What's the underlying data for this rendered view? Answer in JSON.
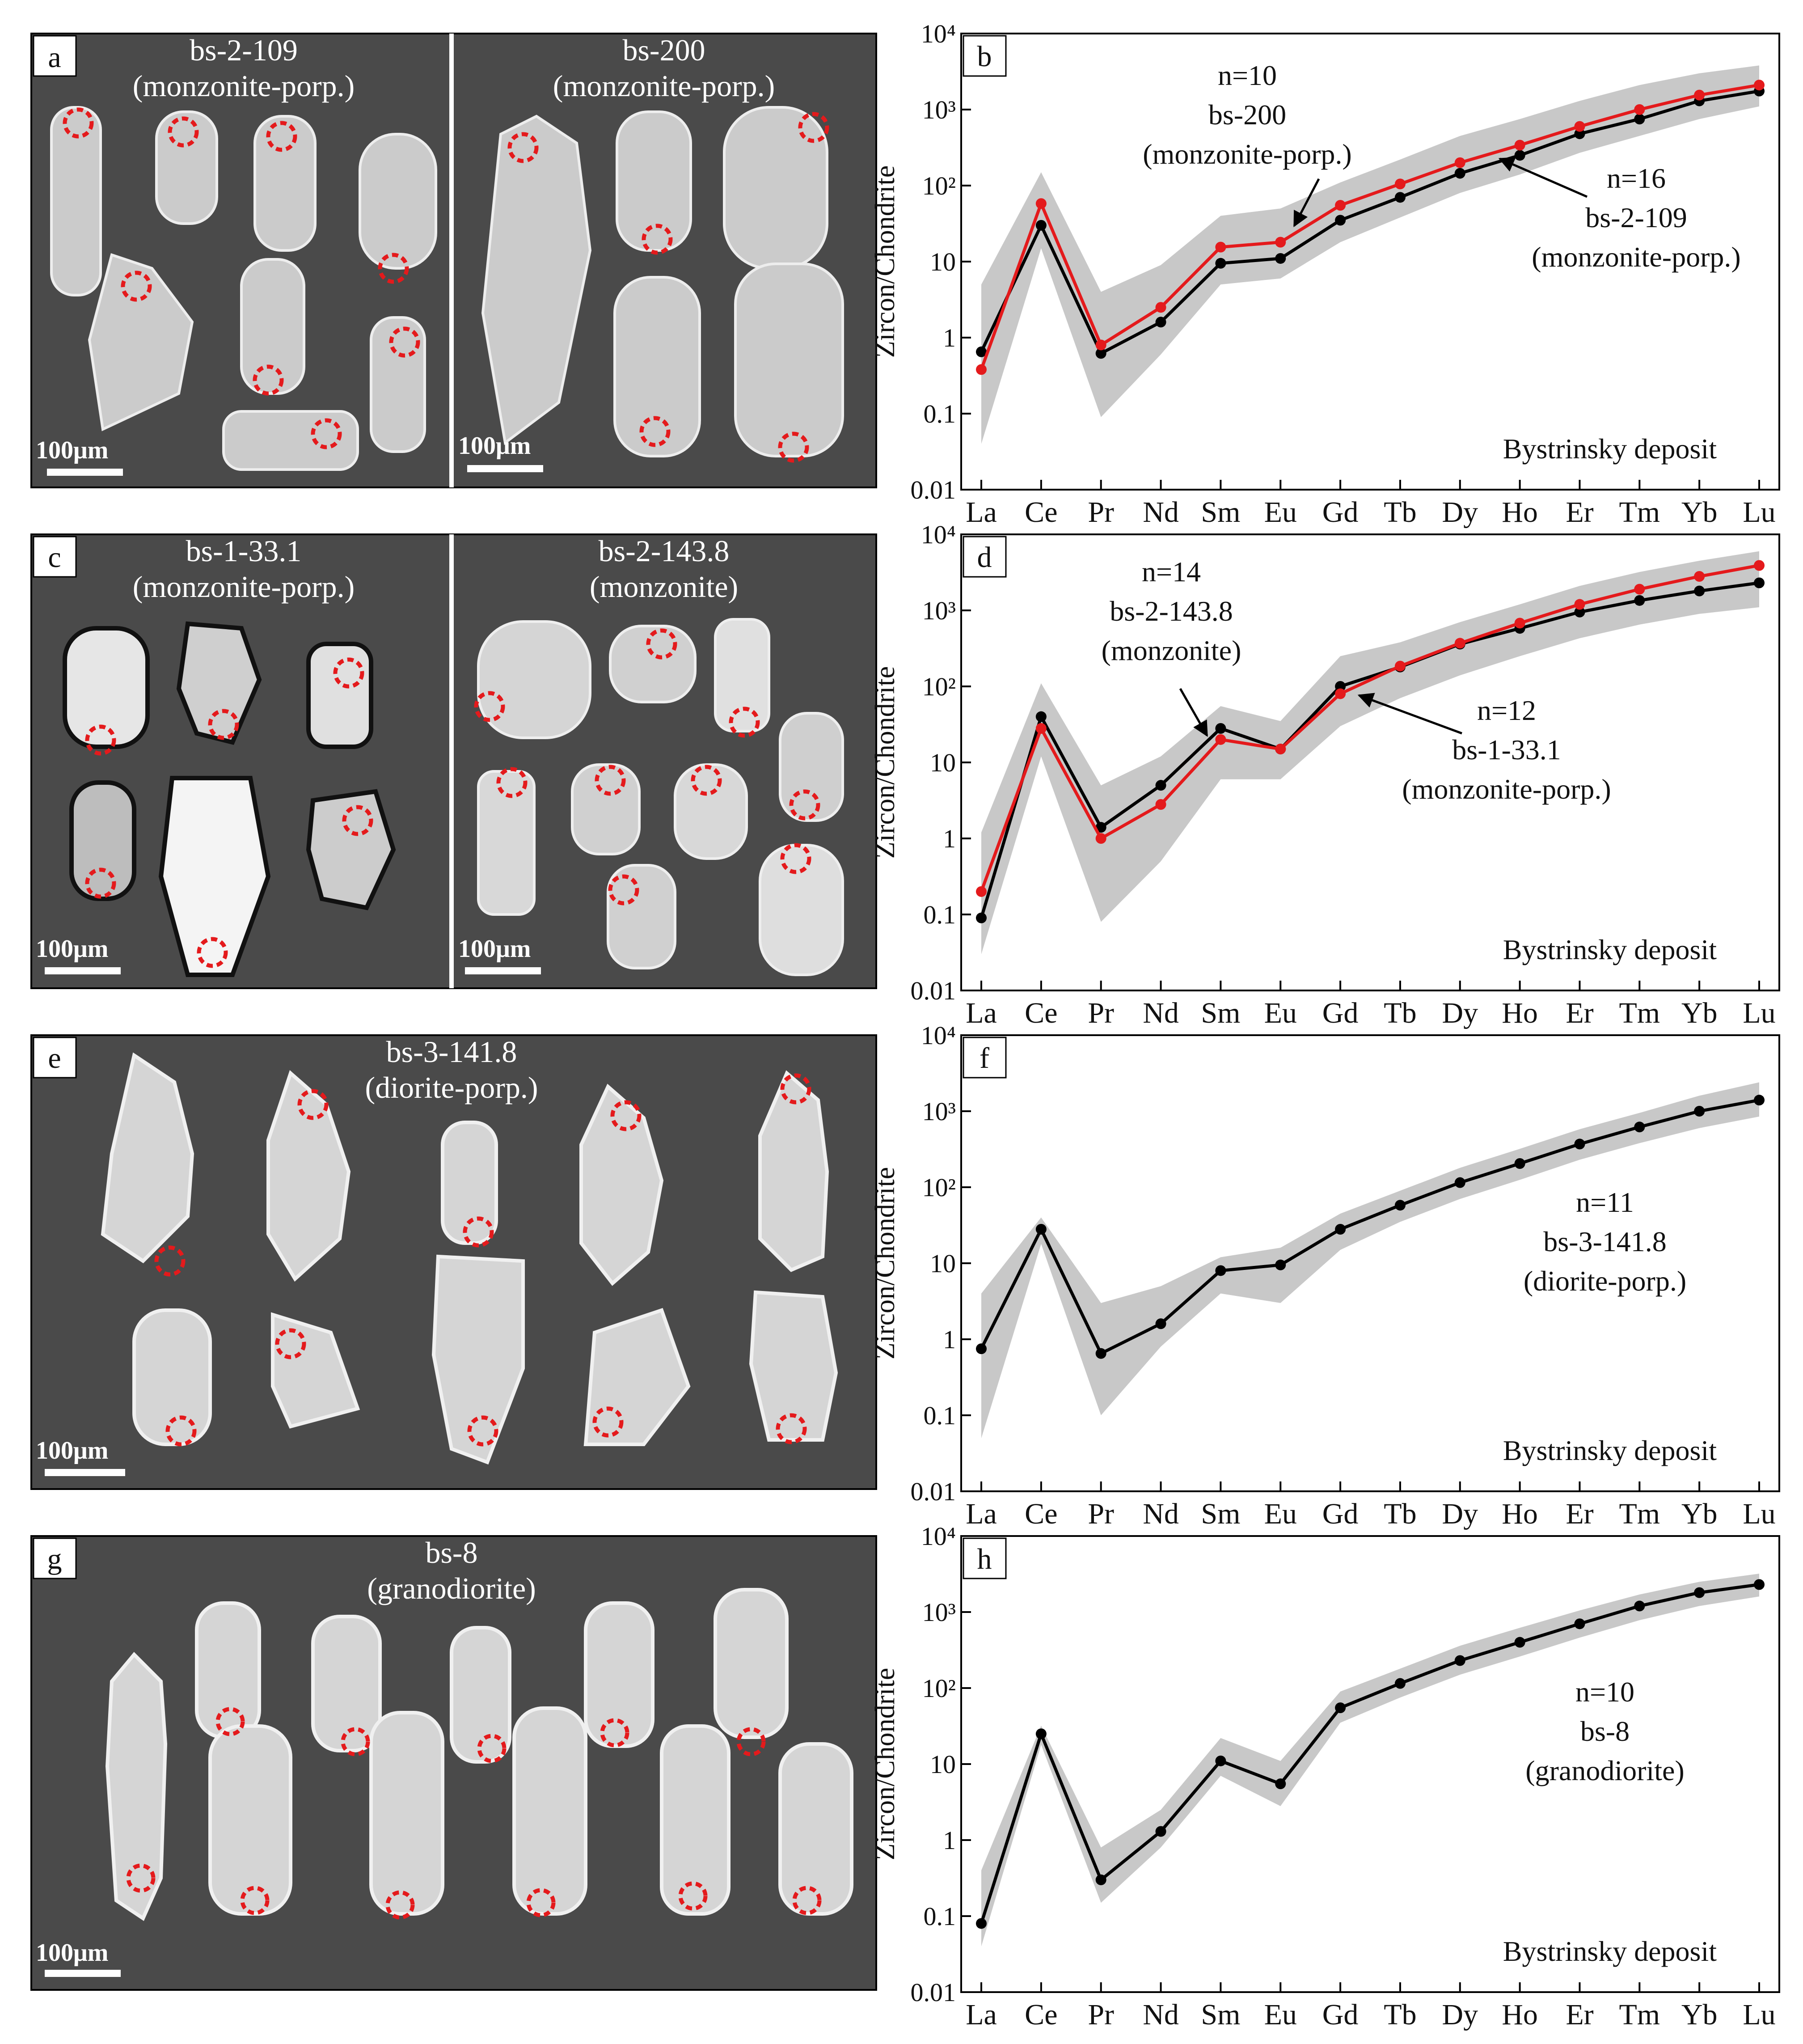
{
  "colors": {
    "panel_bg": "#4a4a4a",
    "crystal": "#d9d9d9",
    "spot": "#e41a1c",
    "series_black": "#000000",
    "series_red": "#e41a1c",
    "envelope": "#c8c8c8"
  },
  "cl_panels": [
    {
      "letter": "a",
      "samples": [
        {
          "name": "bs-2-109",
          "rock": "(monzonite-porp.)",
          "scale": "100μm"
        },
        {
          "name": "bs-200",
          "rock": "(monzonite-porp.)",
          "scale": "100μm"
        }
      ]
    },
    {
      "letter": "c",
      "samples": [
        {
          "name": "bs-1-33.1",
          "rock": "(monzonite-porp.)",
          "scale": "100μm"
        },
        {
          "name": "bs-2-143.8",
          "rock": "(monzonite)",
          "scale": "100μm"
        }
      ]
    },
    {
      "letter": "e",
      "samples": [
        {
          "name": "bs-3-141.8",
          "rock": "(diorite-porp.)",
          "scale": "100μm"
        }
      ]
    },
    {
      "letter": "g",
      "samples": [
        {
          "name": "bs-8",
          "rock": "(granodiorite)",
          "scale": "100μm"
        }
      ]
    }
  ],
  "chart_data": [
    {
      "type": "line",
      "letter": "b",
      "categories": [
        "La",
        "Ce",
        "Pr",
        "Nd",
        "Sm",
        "Eu",
        "Gd",
        "Tb",
        "Dy",
        "Ho",
        "Er",
        "Tm",
        "Yb",
        "Lu"
      ],
      "ylabel": "Zircon/Chondrite",
      "yscale": "log",
      "ylim": [
        0.01,
        10000
      ],
      "yticks": [
        "0.01",
        "0.1",
        "1",
        "10",
        "10²",
        "10³",
        "10⁴"
      ],
      "deposit": "Bystrinsky deposit",
      "series": [
        {
          "name": "bs-2-109",
          "color": "#000000",
          "values": [
            0.65,
            30,
            0.62,
            1.6,
            9.5,
            11,
            35,
            70,
            145,
            250,
            480,
            750,
            1300,
            1750
          ]
        },
        {
          "name": "bs-200",
          "color": "#e41a1c",
          "values": [
            0.38,
            58,
            0.8,
            2.5,
            15.5,
            18,
            55,
            105,
            200,
            340,
            600,
            1000,
            1550,
            2100
          ]
        }
      ],
      "envelope": {
        "upper": [
          5,
          150,
          4,
          9,
          40,
          50,
          110,
          220,
          450,
          750,
          1300,
          2100,
          3000,
          3800
        ],
        "lower": [
          0.04,
          15,
          0.09,
          0.6,
          5,
          6,
          18,
          38,
          80,
          140,
          270,
          450,
          750,
          1100
        ]
      },
      "annotations": [
        {
          "lines": [
            "n=10",
            "bs-200",
            "(monzonite-porp.)"
          ]
        },
        {
          "lines": [
            "n=16",
            "bs-2-109",
            "(monzonite-porp.)"
          ]
        }
      ]
    },
    {
      "type": "line",
      "letter": "d",
      "categories": [
        "La",
        "Ce",
        "Pr",
        "Nd",
        "Sm",
        "Eu",
        "Gd",
        "Tb",
        "Dy",
        "Ho",
        "Er",
        "Tm",
        "Yb",
        "Lu"
      ],
      "ylabel": "Zircon/Chondrite",
      "yscale": "log",
      "ylim": [
        0.01,
        10000
      ],
      "yticks": [
        "0.01",
        "0.1",
        "1",
        "10",
        "10²",
        "10³",
        "10⁴"
      ],
      "deposit": "Bystrinsky deposit",
      "series": [
        {
          "name": "bs-2-143.8",
          "color": "#000000",
          "values": [
            0.09,
            40,
            1.4,
            5,
            28,
            15,
            100,
            180,
            360,
            580,
            950,
            1350,
            1800,
            2300
          ]
        },
        {
          "name": "bs-1-33.1",
          "color": "#e41a1c",
          "values": [
            0.2,
            28,
            1.0,
            2.8,
            20,
            15,
            80,
            185,
            370,
            680,
            1200,
            1900,
            2800,
            3900
          ]
        }
      ],
      "envelope": {
        "upper": [
          1.2,
          110,
          5,
          12,
          55,
          35,
          250,
          380,
          700,
          1200,
          2100,
          3200,
          4500,
          6000
        ],
        "lower": [
          0.03,
          12,
          0.08,
          0.5,
          6,
          6,
          30,
          70,
          140,
          250,
          430,
          650,
          900,
          1100
        ]
      },
      "annotations": [
        {
          "lines": [
            "n=14",
            "bs-2-143.8",
            "(monzonite)"
          ]
        },
        {
          "lines": [
            "n=12",
            "bs-1-33.1",
            "(monzonite-porp.)"
          ]
        }
      ]
    },
    {
      "type": "line",
      "letter": "f",
      "categories": [
        "La",
        "Ce",
        "Pr",
        "Nd",
        "Sm",
        "Eu",
        "Gd",
        "Tb",
        "Dy",
        "Ho",
        "Er",
        "Tm",
        "Yb",
        "Lu"
      ],
      "ylabel": "Zircon/Chondrite",
      "yscale": "log",
      "ylim": [
        0.01,
        10000
      ],
      "yticks": [
        "0.01",
        "0.1",
        "1",
        "10",
        "10²",
        "10³",
        "10⁴"
      ],
      "deposit": "Bystrinsky deposit",
      "series": [
        {
          "name": "bs-3-141.8",
          "color": "#000000",
          "values": [
            0.75,
            28,
            0.65,
            1.6,
            8,
            9.5,
            28,
            58,
            115,
            205,
            370,
            620,
            1000,
            1400
          ]
        }
      ],
      "envelope": {
        "upper": [
          4,
          40,
          3,
          5,
          12,
          16,
          45,
          90,
          180,
          320,
          580,
          950,
          1600,
          2400
        ],
        "lower": [
          0.05,
          18,
          0.1,
          0.8,
          4,
          3,
          15,
          35,
          70,
          125,
          230,
          380,
          600,
          850
        ]
      },
      "annotations": [
        {
          "lines": [
            "n=11",
            "bs-3-141.8",
            "(diorite-porp.)"
          ]
        }
      ]
    },
    {
      "type": "line",
      "letter": "h",
      "categories": [
        "La",
        "Ce",
        "Pr",
        "Nd",
        "Sm",
        "Eu",
        "Gd",
        "Tb",
        "Dy",
        "Ho",
        "Er",
        "Tm",
        "Yb",
        "Lu"
      ],
      "ylabel": "Zircon/Chondrite",
      "yscale": "log",
      "ylim": [
        0.01,
        10000
      ],
      "yticks": [
        "0.01",
        "0.1",
        "1",
        "10",
        "10²",
        "10³",
        "10⁴"
      ],
      "deposit": "Bystrinsky deposit",
      "series": [
        {
          "name": "bs-8",
          "color": "#000000",
          "values": [
            0.08,
            25,
            0.3,
            1.3,
            11,
            5.5,
            55,
            115,
            230,
            400,
            700,
            1200,
            1800,
            2300
          ]
        }
      ],
      "envelope": {
        "upper": [
          0.4,
          32,
          0.8,
          2.5,
          22,
          11,
          90,
          180,
          360,
          620,
          1050,
          1700,
          2500,
          3200
        ],
        "lower": [
          0.04,
          18,
          0.15,
          0.8,
          7,
          2.8,
          35,
          75,
          150,
          260,
          460,
          780,
          1200,
          1600
        ]
      },
      "annotations": [
        {
          "lines": [
            "n=10",
            "bs-8",
            "(granodiorite)"
          ]
        }
      ]
    }
  ]
}
